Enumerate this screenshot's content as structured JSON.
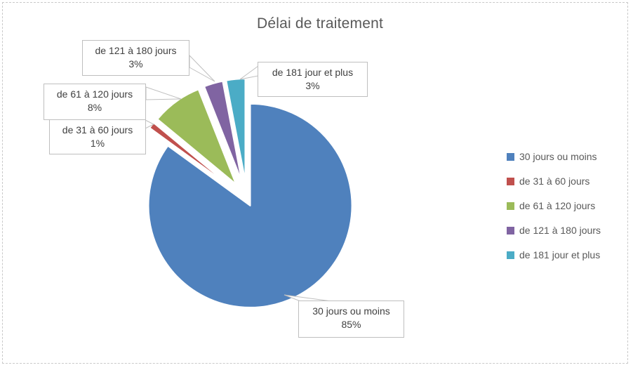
{
  "title": {
    "text": "Délai de traitement",
    "color": "#595959"
  },
  "chart_data": {
    "type": "pie",
    "title": "Délai de traitement",
    "categories": [
      "30 jours ou moins",
      "de 31 à 60 jours",
      "de 61 à 120 jours",
      "de 121 à 180 jours",
      "de 181 jour et plus"
    ],
    "values": [
      85,
      1,
      8,
      3,
      3
    ],
    "unit": "percent",
    "colors": [
      "#4F81BD",
      "#C0504D",
      "#9BBB59",
      "#8064A2",
      "#4BACC6"
    ],
    "start_angle_deg": 0,
    "direction": "clockwise",
    "exploded": true,
    "legend_position": "right",
    "data_label_format": "category + percentage in callout boxes"
  },
  "callouts": [
    {
      "label": "30 jours ou moins",
      "value": "85%"
    },
    {
      "label": "de 31 à 60 jours",
      "value": "1%"
    },
    {
      "label": "de 61 à 120 jours",
      "value": "8%"
    },
    {
      "label": "de 121 à 180 jours",
      "value": "3%"
    },
    {
      "label": "de 181 jour et plus",
      "value": "3%"
    }
  ],
  "legend": {
    "items": [
      {
        "label": "30 jours ou moins",
        "color": "#4F81BD"
      },
      {
        "label": "de 31 à 60 jours",
        "color": "#C0504D"
      },
      {
        "label": "de 61 à 120 jours",
        "color": "#9BBB59"
      },
      {
        "label": "de 121 à 180 jours",
        "color": "#8064A2"
      },
      {
        "label": "de 181 jour et plus",
        "color": "#4BACC6"
      }
    ]
  },
  "style": {
    "border_color": "#c9c9c9",
    "callout_border_color": "#BFBFBF",
    "leader_line_color": "#BFBFBF"
  }
}
